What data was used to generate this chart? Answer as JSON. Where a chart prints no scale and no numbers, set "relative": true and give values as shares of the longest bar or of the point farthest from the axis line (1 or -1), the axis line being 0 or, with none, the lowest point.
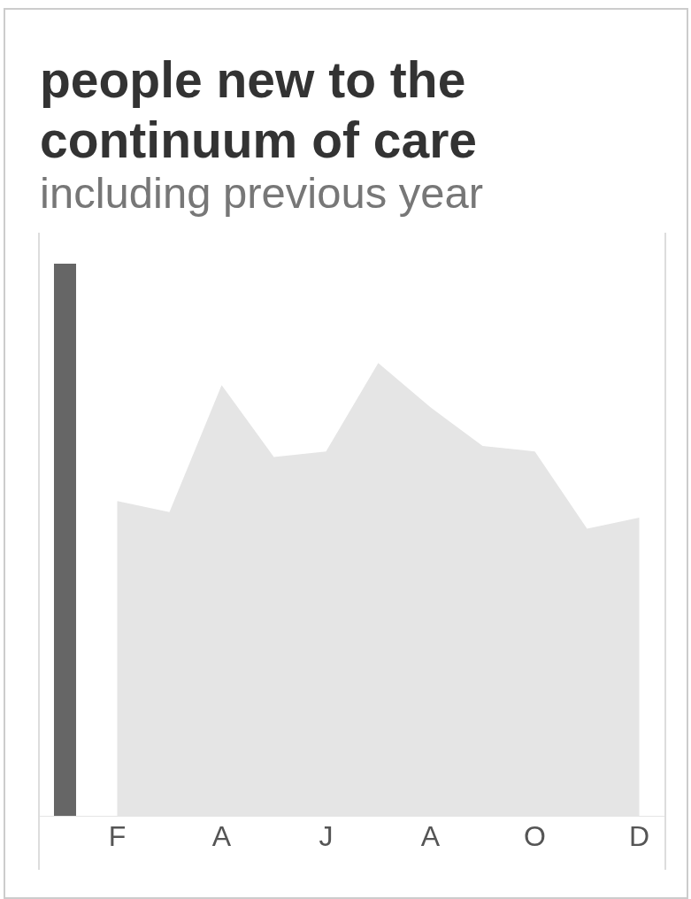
{
  "chart_data": {
    "type": "area",
    "title": "people new to the continuum of care",
    "subtitle": "including previous year",
    "categories": [
      null,
      "F",
      null,
      "A",
      null,
      "J",
      null,
      "A",
      null,
      "O",
      null,
      "D"
    ],
    "relative": true,
    "series": [
      {
        "color": "#e5e5e5",
        "values": [
          null,
          0.57,
          0.55,
          0.78,
          0.65,
          0.66,
          0.82,
          0.74,
          0.67,
          0.66,
          0.52,
          0.54
        ]
      },
      {
        "type": "bar",
        "color": "#666666",
        "values": [
          1,
          null,
          null,
          null,
          null,
          null,
          null,
          null,
          null,
          null,
          null,
          null
        ]
      }
    ]
  }
}
